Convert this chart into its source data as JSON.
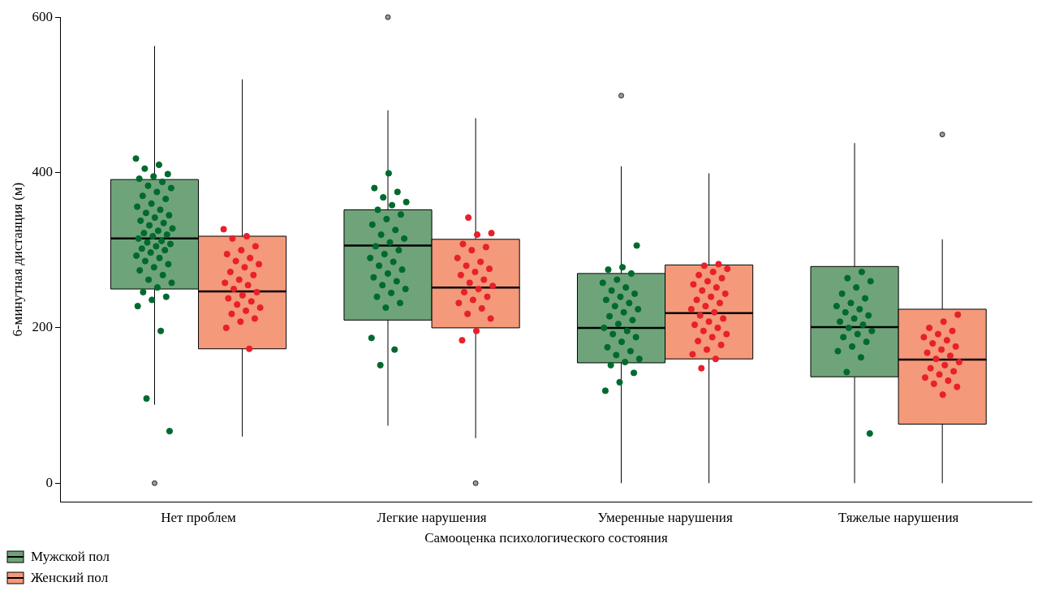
{
  "chart_data": {
    "type": "box",
    "xlabel": "Самооценка психологического состояния",
    "ylabel": "6-минутная дистанция (м)",
    "categories": [
      "Нет проблем",
      "Легкие нарушения",
      "Умеренные нарушения",
      "Тяжелые нарушения"
    ],
    "ylim": [
      -24,
      600
    ],
    "yticks": [
      0,
      200,
      400,
      600
    ],
    "grid": false,
    "legend": "bottom left",
    "series": [
      {
        "name": "Мужской пол",
        "color": "#6fa47a",
        "boxes": [
          {
            "low": 101,
            "q1": 250,
            "median": 315,
            "q3": 391,
            "high": 563,
            "outliers": [
              0
            ]
          },
          {
            "low": 74,
            "q1": 210,
            "median": 306,
            "q3": 352,
            "high": 480,
            "outliers": [
              600
            ]
          },
          {
            "low": 0,
            "q1": 155,
            "median": 200,
            "q3": 270,
            "high": 408,
            "outliers": [
              499
            ]
          },
          {
            "low": 0,
            "q1": 137,
            "median": 201,
            "q3": 279,
            "high": 438
          }
        ]
      },
      {
        "name": "Женский пол",
        "color": "#f4997a",
        "boxes": [
          {
            "low": 60,
            "q1": 173,
            "median": 247,
            "q3": 318,
            "high": 520
          },
          {
            "low": 58,
            "q1": 200,
            "median": 252,
            "q3": 314,
            "high": 470,
            "outliers": [
              0
            ]
          },
          {
            "low": 0,
            "q1": 160,
            "median": 219,
            "q3": 281,
            "high": 399
          },
          {
            "low": 0,
            "q1": 76,
            "median": 159,
            "q3": 224,
            "high": 314,
            "outliers": [
              449
            ]
          }
        ]
      },
      {
        "type": "scatter",
        "color": "#006a2e",
        "x": [
          "Нет проблем",
          "Нет проблем",
          "Нет проблем",
          "Нет проблем",
          "Нет проблем",
          "Нет проблем",
          "Нет проблем",
          "Нет проблем",
          "Нет проблем",
          "Нет проблем",
          "Нет проблем",
          "Нет проблем",
          "Нет проблем",
          "Нет проблем",
          "Нет проблем",
          "Нет проблем",
          "Нет проблем",
          "Нет проблем",
          "Нет проблем",
          "Нет проблем",
          "Нет проблем",
          "Нет проблем",
          "Нет проблем",
          "Нет проблем",
          "Нет проблем",
          "Нет проблем",
          "Нет проблем",
          "Нет проблем",
          "Нет проблем",
          "Нет проблем",
          "Нет проблем",
          "Нет проблем",
          "Нет проблем",
          "Нет проблем",
          "Нет проблем",
          "Нет проблем",
          "Нет проблем",
          "Нет проблем",
          "Нет проблем",
          "Нет проблем",
          "Нет проблем",
          "Нет проблем",
          "Нет проблем",
          "Нет проблем",
          "Нет проблем",
          "Нет проблем",
          "Нет проблем",
          "Нет проблем",
          "Нет проблем",
          "Нет проблем",
          "Нет проблем",
          "Легкие нарушения",
          "Легкие нарушения",
          "Легкие нарушения",
          "Легкие нарушения",
          "Легкие нарушения",
          "Легкие нарушения",
          "Легкие нарушения",
          "Легкие нарушения",
          "Легкие нарушения",
          "Легкие нарушения",
          "Легкие нарушения",
          "Легкие нарушения",
          "Легкие нарушения",
          "Легкие нарушения",
          "Легкие нарушения",
          "Легкие нарушения",
          "Легкие нарушения",
          "Легкие нарушения",
          "Легкие нарушения",
          "Легкие нарушения",
          "Легкие нарушения",
          "Легкие нарушения",
          "Легкие нарушения",
          "Легкие нарушения",
          "Легкие нарушения",
          "Легкие нарушения",
          "Легкие нарушения",
          "Легкие нарушения",
          "Легкие нарушения",
          "Легкие нарушения",
          "Легкие нарушения",
          "Легкие нарушения",
          "Легкие нарушения",
          "Умеренные нарушения",
          "Умеренные нарушения",
          "Умеренные нарушения",
          "Умеренные нарушения",
          "Умеренные нарушения",
          "Умеренные нарушения",
          "Умеренные нарушения",
          "Умеренные нарушения",
          "Умеренные нарушения",
          "Умеренные нарушения",
          "Умеренные нарушения",
          "Умеренные нарушения",
          "Умеренные нарушения",
          "Умеренные нарушения",
          "Умеренные нарушения",
          "Умеренные нарушения",
          "Умеренные нарушения",
          "Умеренные нарушения",
          "Умеренные нарушения",
          "Умеренные нарушения",
          "Умеренные нарушения",
          "Умеренные нарушения",
          "Умеренные нарушения",
          "Умеренные нарушения",
          "Умеренные нарушения",
          "Умеренные нарушения",
          "Умеренные нарушения",
          "Умеренные нарушения",
          "Умеренные нарушения",
          "Умеренные нарушения",
          "Умеренные нарушения",
          "Умеренные нарушения",
          "Тяжелые нарушения",
          "Тяжелые нарушения",
          "Тяжелые нарушения",
          "Тяжелые нарушения",
          "Тяжелые нарушения",
          "Тяжелые нарушения",
          "Тяжелые нарушения",
          "Тяжелые нарушения",
          "Тяжелые нарушения",
          "Тяжелые нарушения",
          "Тяжелые нарушения",
          "Тяжелые нарушения",
          "Тяжелые нарушения",
          "Тяжелые нарушения",
          "Тяжелые нарушения",
          "Тяжелые нарушения",
          "Тяжелые нарушения",
          "Тяжелые нарушения",
          "Тяжелые нарушения",
          "Тяжелые нарушения",
          "Тяжелые нарушения",
          "Тяжелые нарушения",
          "Тяжелые нарушения",
          "Тяжелые нарушения"
        ],
        "values": [
          418,
          410,
          405,
          398,
          395,
          392,
          388,
          383,
          380,
          375,
          370,
          366,
          360,
          356,
          352,
          348,
          345,
          342,
          338,
          335,
          332,
          328,
          325,
          322,
          320,
          318,
          315,
          312,
          310,
          308,
          305,
          302,
          300,
          297,
          293,
          290,
          286,
          282,
          278,
          274,
          268,
          262,
          258,
          252,
          246,
          240,
          236,
          228,
          196,
          109,
          67,
          399,
          380,
          375,
          368,
          362,
          358,
          352,
          346,
          340,
          333,
          326,
          320,
          315,
          310,
          305,
          300,
          295,
          290,
          285,
          280,
          275,
          270,
          265,
          260,
          255,
          250,
          245,
          240,
          232,
          226,
          187,
          172,
          152,
          306,
          278,
          275,
          270,
          262,
          258,
          252,
          248,
          244,
          240,
          236,
          232,
          228,
          224,
          220,
          215,
          210,
          205,
          200,
          196,
          192,
          188,
          182,
          175,
          170,
          165,
          160,
          156,
          152,
          142,
          130,
          119,
          272,
          264,
          260,
          252,
          244,
          238,
          232,
          228,
          224,
          220,
          216,
          212,
          208,
          204,
          200,
          196,
          192,
          188,
          182,
          176,
          170,
          162,
          143,
          64
        ]
      },
      {
        "type": "scatter",
        "color": "#e8202a",
        "x": [
          "Нет проблем",
          "Нет проблем",
          "Нет проблем",
          "Нет проблем",
          "Нет проблем",
          "Нет проблем",
          "Нет проблем",
          "Нет проблем",
          "Нет проблем",
          "Нет проблем",
          "Нет проблем",
          "Нет проблем",
          "Нет проблем",
          "Нет проблем",
          "Нет проблем",
          "Нет проблем",
          "Нет проблем",
          "Нет проблем",
          "Нет проблем",
          "Нет проблем",
          "Нет проблем",
          "Нет проблем",
          "Нет проблем",
          "Нет проблем",
          "Нет проблем",
          "Нет проблем",
          "Нет проблем",
          "Нет проблем",
          "Легкие нарушения",
          "Легкие нарушения",
          "Легкие нарушения",
          "Легкие нарушения",
          "Легкие нарушения",
          "Легкие нарушения",
          "Легкие нарушения",
          "Легкие нарушения",
          "Легкие нарушения",
          "Легкие нарушения",
          "Легкие нарушения",
          "Легкие нарушения",
          "Легкие нарушения",
          "Легкие нарушения",
          "Легкие нарушения",
          "Легкие нарушения",
          "Легкие нарушения",
          "Легкие нарушения",
          "Легкие нарушения",
          "Легкие нарушения",
          "Легкие нарушения",
          "Легкие нарушения",
          "Легкие нарушения",
          "Легкие нарушения",
          "Легкие нарушения",
          "Умеренные нарушения",
          "Умеренные нарушения",
          "Умеренные нарушения",
          "Умеренные нарушения",
          "Умеренные нарушения",
          "Умеренные нарушения",
          "Умеренные нарушения",
          "Умеренные нарушения",
          "Умеренные нарушения",
          "Умеренные нарушения",
          "Умеренные нарушения",
          "Умеренные нарушения",
          "Умеренные нарушения",
          "Умеренные нарушения",
          "Умеренные нарушения",
          "Умеренные нарушения",
          "Умеренные нарушения",
          "Умеренные нарушения",
          "Умеренные нарушения",
          "Умеренные нарушения",
          "Умеренные нарушения",
          "Умеренные нарушения",
          "Умеренные нарушения",
          "Умеренные нарушения",
          "Умеренные нарушения",
          "Умеренные нарушения",
          "Умеренные нарушения",
          "Умеренные нарушения",
          "Умеренные нарушения",
          "Умеренные нарушения",
          "Умеренные нарушения",
          "Тяжелые нарушения",
          "Тяжелые нарушения",
          "Тяжелые нарушения",
          "Тяжелые нарушения",
          "Тяжелые нарушения",
          "Тяжелые нарушения",
          "Тяжелые нарушения",
          "Тяжелые нарушения",
          "Тяжелые нарушения",
          "Тяжелые нарушения",
          "Тяжелые нарушения",
          "Тяжелые нарушения",
          "Тяжелые нарушения",
          "Тяжелые нарушения",
          "Тяжелые нарушения",
          "Тяжелые нарушения",
          "Тяжелые нарушения",
          "Тяжелые нарушения",
          "Тяжелые нарушения",
          "Тяжелые нарушения",
          "Тяжелые нарушения",
          "Тяжелые нарушения",
          "Тяжелые нарушения"
        ],
        "values": [
          327,
          318,
          315,
          305,
          300,
          295,
          290,
          286,
          282,
          278,
          272,
          268,
          262,
          258,
          255,
          250,
          246,
          242,
          238,
          234,
          230,
          226,
          222,
          218,
          212,
          208,
          200,
          173,
          342,
          322,
          320,
          308,
          304,
          300,
          290,
          285,
          280,
          276,
          272,
          268,
          262,
          258,
          254,
          250,
          246,
          240,
          236,
          232,
          225,
          218,
          212,
          196,
          184,
          282,
          280,
          276,
          272,
          268,
          264,
          260,
          256,
          252,
          248,
          244,
          240,
          236,
          232,
          228,
          224,
          220,
          216,
          212,
          208,
          204,
          200,
          196,
          192,
          188,
          183,
          178,
          172,
          166,
          160,
          148,
          217,
          208,
          200,
          196,
          192,
          188,
          184,
          180,
          176,
          172,
          168,
          164,
          160,
          156,
          152,
          148,
          144,
          140,
          136,
          132,
          128,
          124,
          114
        ]
      }
    ]
  }
}
